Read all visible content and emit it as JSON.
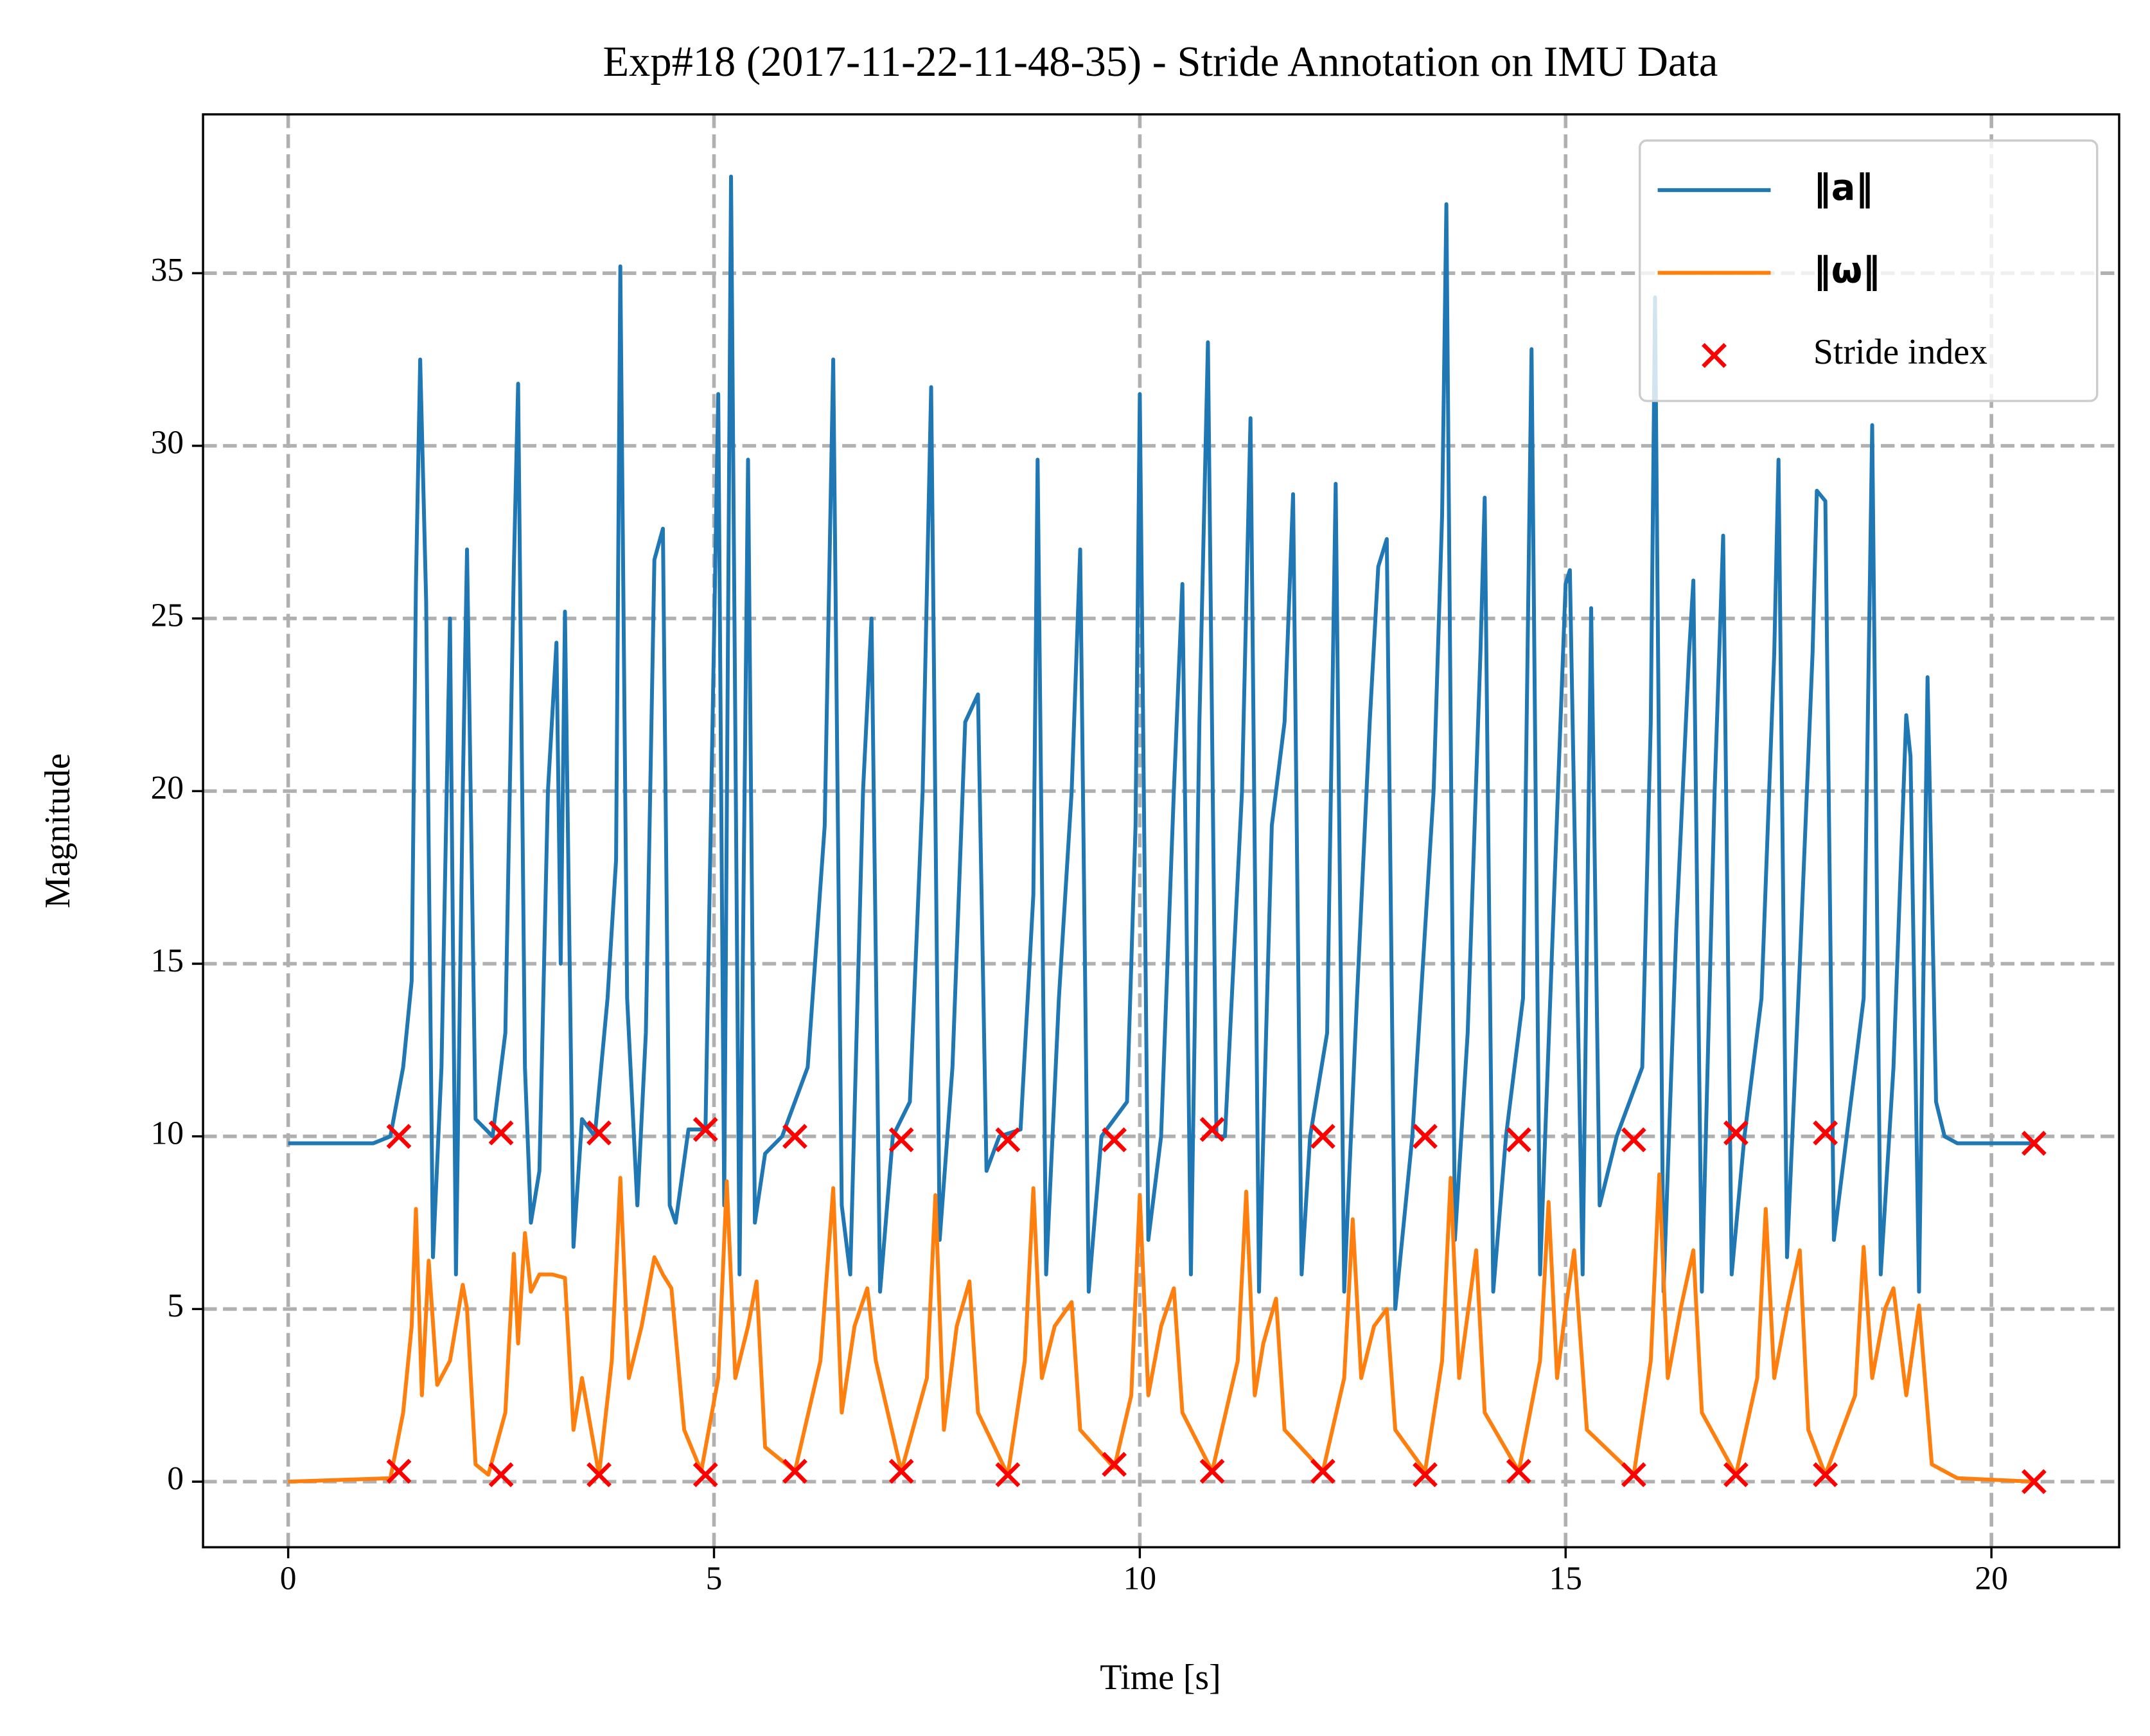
{
  "chart_data": {
    "type": "line",
    "title": "Exp#18 (2017-11-22-11-48-35) - Stride Annotation on IMU Data",
    "x_label": "Time [s]",
    "y_label": "Magnitude",
    "xlim": [
      -1.0,
      21.5
    ],
    "ylim": [
      -1.9,
      39.6
    ],
    "xticks": [
      0,
      5,
      10,
      15,
      20
    ],
    "yticks": [
      0,
      5,
      10,
      15,
      20,
      25,
      30,
      35
    ],
    "grid": true,
    "legend": "upper right",
    "series": [
      {
        "name": "‖a‖",
        "color": "#1f77b4",
        "type": "line",
        "x": [
          0,
          1.0,
          1.2,
          1.35,
          1.45,
          1.5,
          1.55,
          1.62,
          1.7,
          1.8,
          1.9,
          1.97,
          2.05,
          2.1,
          2.2,
          2.4,
          2.55,
          2.65,
          2.7,
          2.78,
          2.85,
          2.95,
          3.05,
          3.15,
          3.2,
          3.25,
          3.35,
          3.45,
          3.6,
          3.75,
          3.85,
          3.9,
          3.98,
          4.1,
          4.2,
          4.3,
          4.4,
          4.48,
          4.55,
          4.7,
          4.9,
          5.05,
          5.12,
          5.2,
          5.3,
          5.4,
          5.48,
          5.6,
          5.8,
          6.1,
          6.3,
          6.4,
          6.5,
          6.6,
          6.75,
          6.85,
          6.95,
          7.1,
          7.3,
          7.45,
          7.55,
          7.65,
          7.8,
          7.95,
          8.1,
          8.2,
          8.35,
          8.6,
          8.75,
          8.8,
          8.9,
          9.05,
          9.2,
          9.3,
          9.4,
          9.55,
          9.85,
          9.95,
          10.0,
          10.1,
          10.25,
          10.4,
          10.5,
          10.6,
          10.7,
          10.8,
          10.9,
          11.0,
          11.2,
          11.3,
          11.4,
          11.55,
          11.7,
          11.8,
          11.9,
          12.0,
          12.2,
          12.3,
          12.4,
          12.55,
          12.7,
          12.8,
          12.9,
          13.0,
          13.2,
          13.45,
          13.55,
          13.6,
          13.7,
          13.85,
          14.0,
          14.05,
          14.15,
          14.3,
          14.5,
          14.6,
          14.7,
          14.85,
          15.0,
          15.05,
          15.2,
          15.3,
          15.4,
          15.6,
          15.9,
          16.0,
          16.05,
          16.15,
          16.3,
          16.45,
          16.5,
          16.6,
          16.75,
          16.85,
          16.95,
          17.1,
          17.3,
          17.45,
          17.5,
          17.6,
          17.75,
          17.9,
          17.95,
          18.05,
          18.15,
          18.3,
          18.5,
          18.6,
          18.7,
          18.85,
          19.0,
          19.05,
          19.15,
          19.25,
          19.35,
          19.45,
          19.6,
          20.5
        ],
        "values": [
          9.8,
          9.8,
          10.0,
          12,
          14.5,
          26,
          32.5,
          25.5,
          6.5,
          12,
          25,
          6.0,
          20,
          27,
          10.5,
          10.0,
          13,
          26.5,
          31.8,
          12,
          7.5,
          9,
          20,
          24.3,
          15,
          25.2,
          6.8,
          10.5,
          10.0,
          14,
          18,
          35.2,
          14,
          8,
          13,
          26.7,
          27.6,
          8,
          7.5,
          10.2,
          10.2,
          31.5,
          8,
          37.8,
          6,
          29.6,
          7.5,
          9.5,
          10.0,
          12,
          19,
          32.5,
          8,
          6,
          20,
          25,
          5.5,
          10.0,
          11,
          20,
          31.7,
          7,
          12,
          22,
          22.8,
          9,
          10.0,
          10.2,
          17,
          29.6,
          6,
          14,
          20,
          27,
          5.5,
          10.0,
          11,
          19,
          31.5,
          7,
          10,
          20,
          26,
          6,
          22,
          33,
          10,
          10.0,
          20,
          30.8,
          5.5,
          19,
          22,
          28.6,
          6,
          10.0,
          13,
          28.9,
          5.5,
          14,
          22,
          26.5,
          27.3,
          5,
          10.0,
          20,
          28,
          37,
          7,
          13,
          24,
          28.5,
          5.5,
          10.0,
          14,
          32.8,
          6,
          16,
          26,
          26.4,
          6,
          25.3,
          8,
          10.0,
          12,
          22,
          34.3,
          5.5,
          16,
          24,
          26.1,
          5.5,
          20,
          27.4,
          6,
          10.0,
          14,
          24,
          29.6,
          6.5,
          15,
          24,
          28.7,
          28.4,
          7,
          10.0,
          14,
          30.6,
          6,
          12,
          22.2,
          21,
          5.5,
          23.3,
          11,
          10.0,
          9.8,
          9.8
        ]
      },
      {
        "name": "‖ω‖",
        "color": "#ff7f0e",
        "type": "line",
        "x": [
          0,
          1.2,
          1.35,
          1.45,
          1.5,
          1.57,
          1.65,
          1.75,
          1.9,
          2.05,
          2.1,
          2.2,
          2.35,
          2.55,
          2.65,
          2.7,
          2.78,
          2.85,
          2.95,
          3.1,
          3.25,
          3.35,
          3.45,
          3.65,
          3.8,
          3.9,
          4.0,
          4.15,
          4.3,
          4.4,
          4.5,
          4.65,
          4.85,
          5.05,
          5.15,
          5.25,
          5.4,
          5.5,
          5.6,
          5.95,
          6.25,
          6.4,
          6.5,
          6.65,
          6.8,
          6.9,
          7.2,
          7.5,
          7.6,
          7.7,
          7.85,
          8.0,
          8.1,
          8.45,
          8.65,
          8.75,
          8.85,
          9.0,
          9.2,
          9.3,
          9.7,
          9.9,
          10.0,
          10.1,
          10.25,
          10.4,
          10.5,
          10.85,
          11.15,
          11.25,
          11.35,
          11.45,
          11.6,
          11.7,
          12.15,
          12.4,
          12.5,
          12.6,
          12.75,
          12.9,
          13.0,
          13.35,
          13.55,
          13.65,
          13.75,
          13.95,
          14.05,
          14.45,
          14.7,
          14.8,
          14.9,
          15.0,
          15.1,
          15.25,
          15.8,
          16.0,
          16.1,
          16.2,
          16.35,
          16.5,
          16.6,
          17.0,
          17.25,
          17.35,
          17.45,
          17.6,
          17.75,
          17.85,
          18.05,
          18.4,
          18.5,
          18.6,
          18.75,
          18.85,
          19.0,
          19.15,
          19.3,
          19.6,
          20.5
        ],
        "values": [
          0.0,
          0.1,
          2.0,
          4.5,
          7.9,
          2.5,
          6.4,
          2.8,
          3.5,
          5.7,
          5.0,
          0.5,
          0.2,
          2.0,
          6.6,
          4.0,
          7.2,
          5.5,
          6.0,
          6.0,
          5.9,
          1.5,
          3.0,
          0.2,
          3.5,
          8.8,
          3.0,
          4.5,
          6.5,
          6.0,
          5.6,
          1.5,
          0.3,
          3.0,
          8.7,
          3.0,
          4.5,
          5.8,
          1.0,
          0.3,
          3.5,
          8.5,
          2.0,
          4.5,
          5.6,
          3.5,
          0.3,
          3.0,
          8.3,
          1.5,
          4.5,
          5.8,
          2.0,
          0.2,
          3.5,
          8.5,
          3.0,
          4.5,
          5.2,
          1.5,
          0.4,
          2.5,
          8.3,
          2.5,
          4.5,
          5.6,
          2.0,
          0.3,
          3.5,
          8.4,
          2.5,
          4.0,
          5.3,
          1.5,
          0.3,
          3.0,
          7.6,
          3.0,
          4.5,
          5.0,
          1.5,
          0.3,
          3.5,
          8.8,
          3.0,
          6.7,
          2.0,
          0.3,
          3.5,
          8.1,
          3.0,
          5.0,
          6.7,
          1.5,
          0.2,
          3.5,
          8.9,
          3.0,
          5.0,
          6.7,
          2.0,
          0.2,
          3.0,
          7.9,
          3.0,
          5.0,
          6.7,
          1.5,
          0.2,
          2.5,
          6.8,
          3.0,
          5.0,
          5.6,
          2.5,
          5.1,
          0.5,
          0.1,
          0.0
        ]
      },
      {
        "name": "Stride index",
        "color": "#ff0000",
        "type": "scatter",
        "x": [
          1.3,
          2.5,
          3.65,
          4.9,
          5.95,
          7.2,
          8.45,
          9.7,
          10.85,
          12.15,
          13.35,
          14.45,
          15.8,
          17.0,
          18.05,
          20.5,
          1.3,
          2.5,
          3.65,
          4.9,
          5.95,
          7.2,
          8.45,
          9.7,
          10.85,
          12.15,
          13.35,
          14.45,
          15.8,
          17.0,
          18.05,
          20.5
        ],
        "values": [
          10.0,
          10.1,
          10.1,
          10.2,
          10.0,
          9.9,
          9.9,
          9.9,
          10.2,
          10.0,
          10.0,
          9.9,
          9.9,
          10.1,
          10.1,
          9.8,
          0.3,
          0.2,
          0.2,
          0.2,
          0.3,
          0.3,
          0.2,
          0.5,
          0.3,
          0.3,
          0.2,
          0.3,
          0.2,
          0.2,
          0.2,
          0.0
        ]
      }
    ]
  }
}
